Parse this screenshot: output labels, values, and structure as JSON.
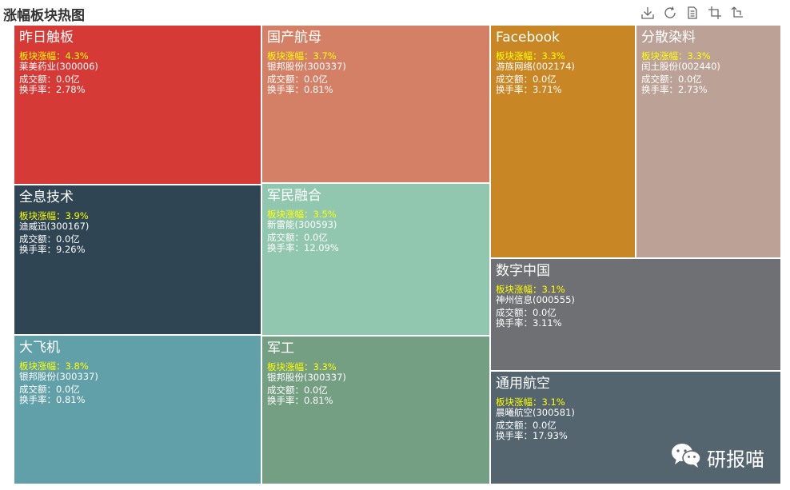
{
  "title": "涨幅板块热图",
  "toolbox": {
    "icons": [
      "download-icon",
      "refresh-icon",
      "data-view-icon",
      "zoom-icon",
      "restore-icon"
    ]
  },
  "labels": {
    "gain": "板块涨幅：",
    "volume": "成交额：",
    "turnover": "换手率："
  },
  "watermark": {
    "text": "研报喵",
    "icon": "wechat-icon"
  },
  "chart_data": {
    "type": "treemap",
    "title": "涨幅板块热图",
    "items": [
      {
        "name": "昨日触板",
        "gain": "4.3%",
        "stock": "莱美药业(300006)",
        "volume": "0.0亿",
        "turnover": "2.78%",
        "color": "#d63a36"
      },
      {
        "name": "国产航母",
        "gain": "3.7%",
        "stock": "银邦股份(300337)",
        "volume": "0.0亿",
        "turnover": "0.81%",
        "color": "#d48066"
      },
      {
        "name": "Facebook",
        "gain": "3.3%",
        "stock": "游族网络(002174)",
        "volume": "0.0亿",
        "turnover": "3.71%",
        "color": "#c88624"
      },
      {
        "name": "分散染料",
        "gain": "3.3%",
        "stock": "闰土股份(002440)",
        "volume": "0.0亿",
        "turnover": "2.73%",
        "color": "#bca197"
      },
      {
        "name": "全息技术",
        "gain": "3.9%",
        "stock": "迪威迅(300167)",
        "volume": "0.0亿",
        "turnover": "9.26%",
        "color": "#2f4554"
      },
      {
        "name": "军民融合",
        "gain": "3.5%",
        "stock": "新雷能(300593)",
        "volume": "0.0亿",
        "turnover": "12.09%",
        "color": "#91c7ae"
      },
      {
        "name": "数字中国",
        "gain": "3.1%",
        "stock": "神州信息(000555)",
        "volume": "0.0亿",
        "turnover": "3.11%",
        "color": "#6e7074"
      },
      {
        "name": "大飞机",
        "gain": "3.8%",
        "stock": "银邦股份(300337)",
        "volume": "0.0亿",
        "turnover": "0.81%",
        "color": "#61a0a8"
      },
      {
        "name": "军工",
        "gain": "3.3%",
        "stock": "银邦股份(300337)",
        "volume": "0.0亿",
        "turnover": "0.81%",
        "color": "#749f83"
      },
      {
        "name": "通用航空",
        "gain": "3.1%",
        "stock": "晨曦航空(300581)",
        "volume": "0.0亿",
        "turnover": "17.93%",
        "color": "#546570"
      }
    ]
  }
}
